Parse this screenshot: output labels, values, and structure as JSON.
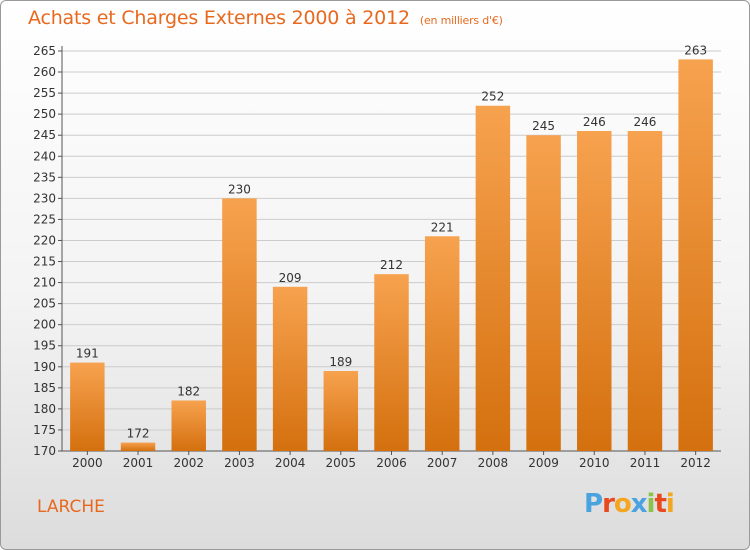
{
  "header": {
    "title": "Achats et Charges Externes 2000 à 2012",
    "subtitle": "(en milliers d'€)"
  },
  "footer": {
    "commune": "LARCHE",
    "brand": "Proxiti",
    "brand_colors": [
      "#4aa3df",
      "#e8491e",
      "#f4a623",
      "#4aa3df",
      "#8bc34a",
      "#e8491e",
      "#f4a623"
    ]
  },
  "colors": {
    "bar_light": "#f7a24f",
    "bar_dark": "#d4700e",
    "label": "#333333",
    "axis": "#555555",
    "grid": "#cccccc"
  },
  "chart_data": {
    "type": "bar",
    "title": "Achats et Charges Externes 2000 à 2012",
    "subtitle": "(en milliers d'€)",
    "categories": [
      "2000",
      "2001",
      "2002",
      "2003",
      "2004",
      "2005",
      "2006",
      "2007",
      "2008",
      "2009",
      "2010",
      "2011",
      "2012"
    ],
    "values": [
      191,
      172,
      182,
      230,
      209,
      189,
      212,
      221,
      252,
      245,
      246,
      246,
      263
    ],
    "ylim": [
      170,
      265
    ],
    "yticks": [
      170,
      175,
      180,
      185,
      190,
      195,
      200,
      205,
      210,
      215,
      220,
      225,
      230,
      235,
      240,
      245,
      250,
      255,
      260,
      265
    ],
    "grid": true,
    "xlabel": "",
    "ylabel": ""
  }
}
